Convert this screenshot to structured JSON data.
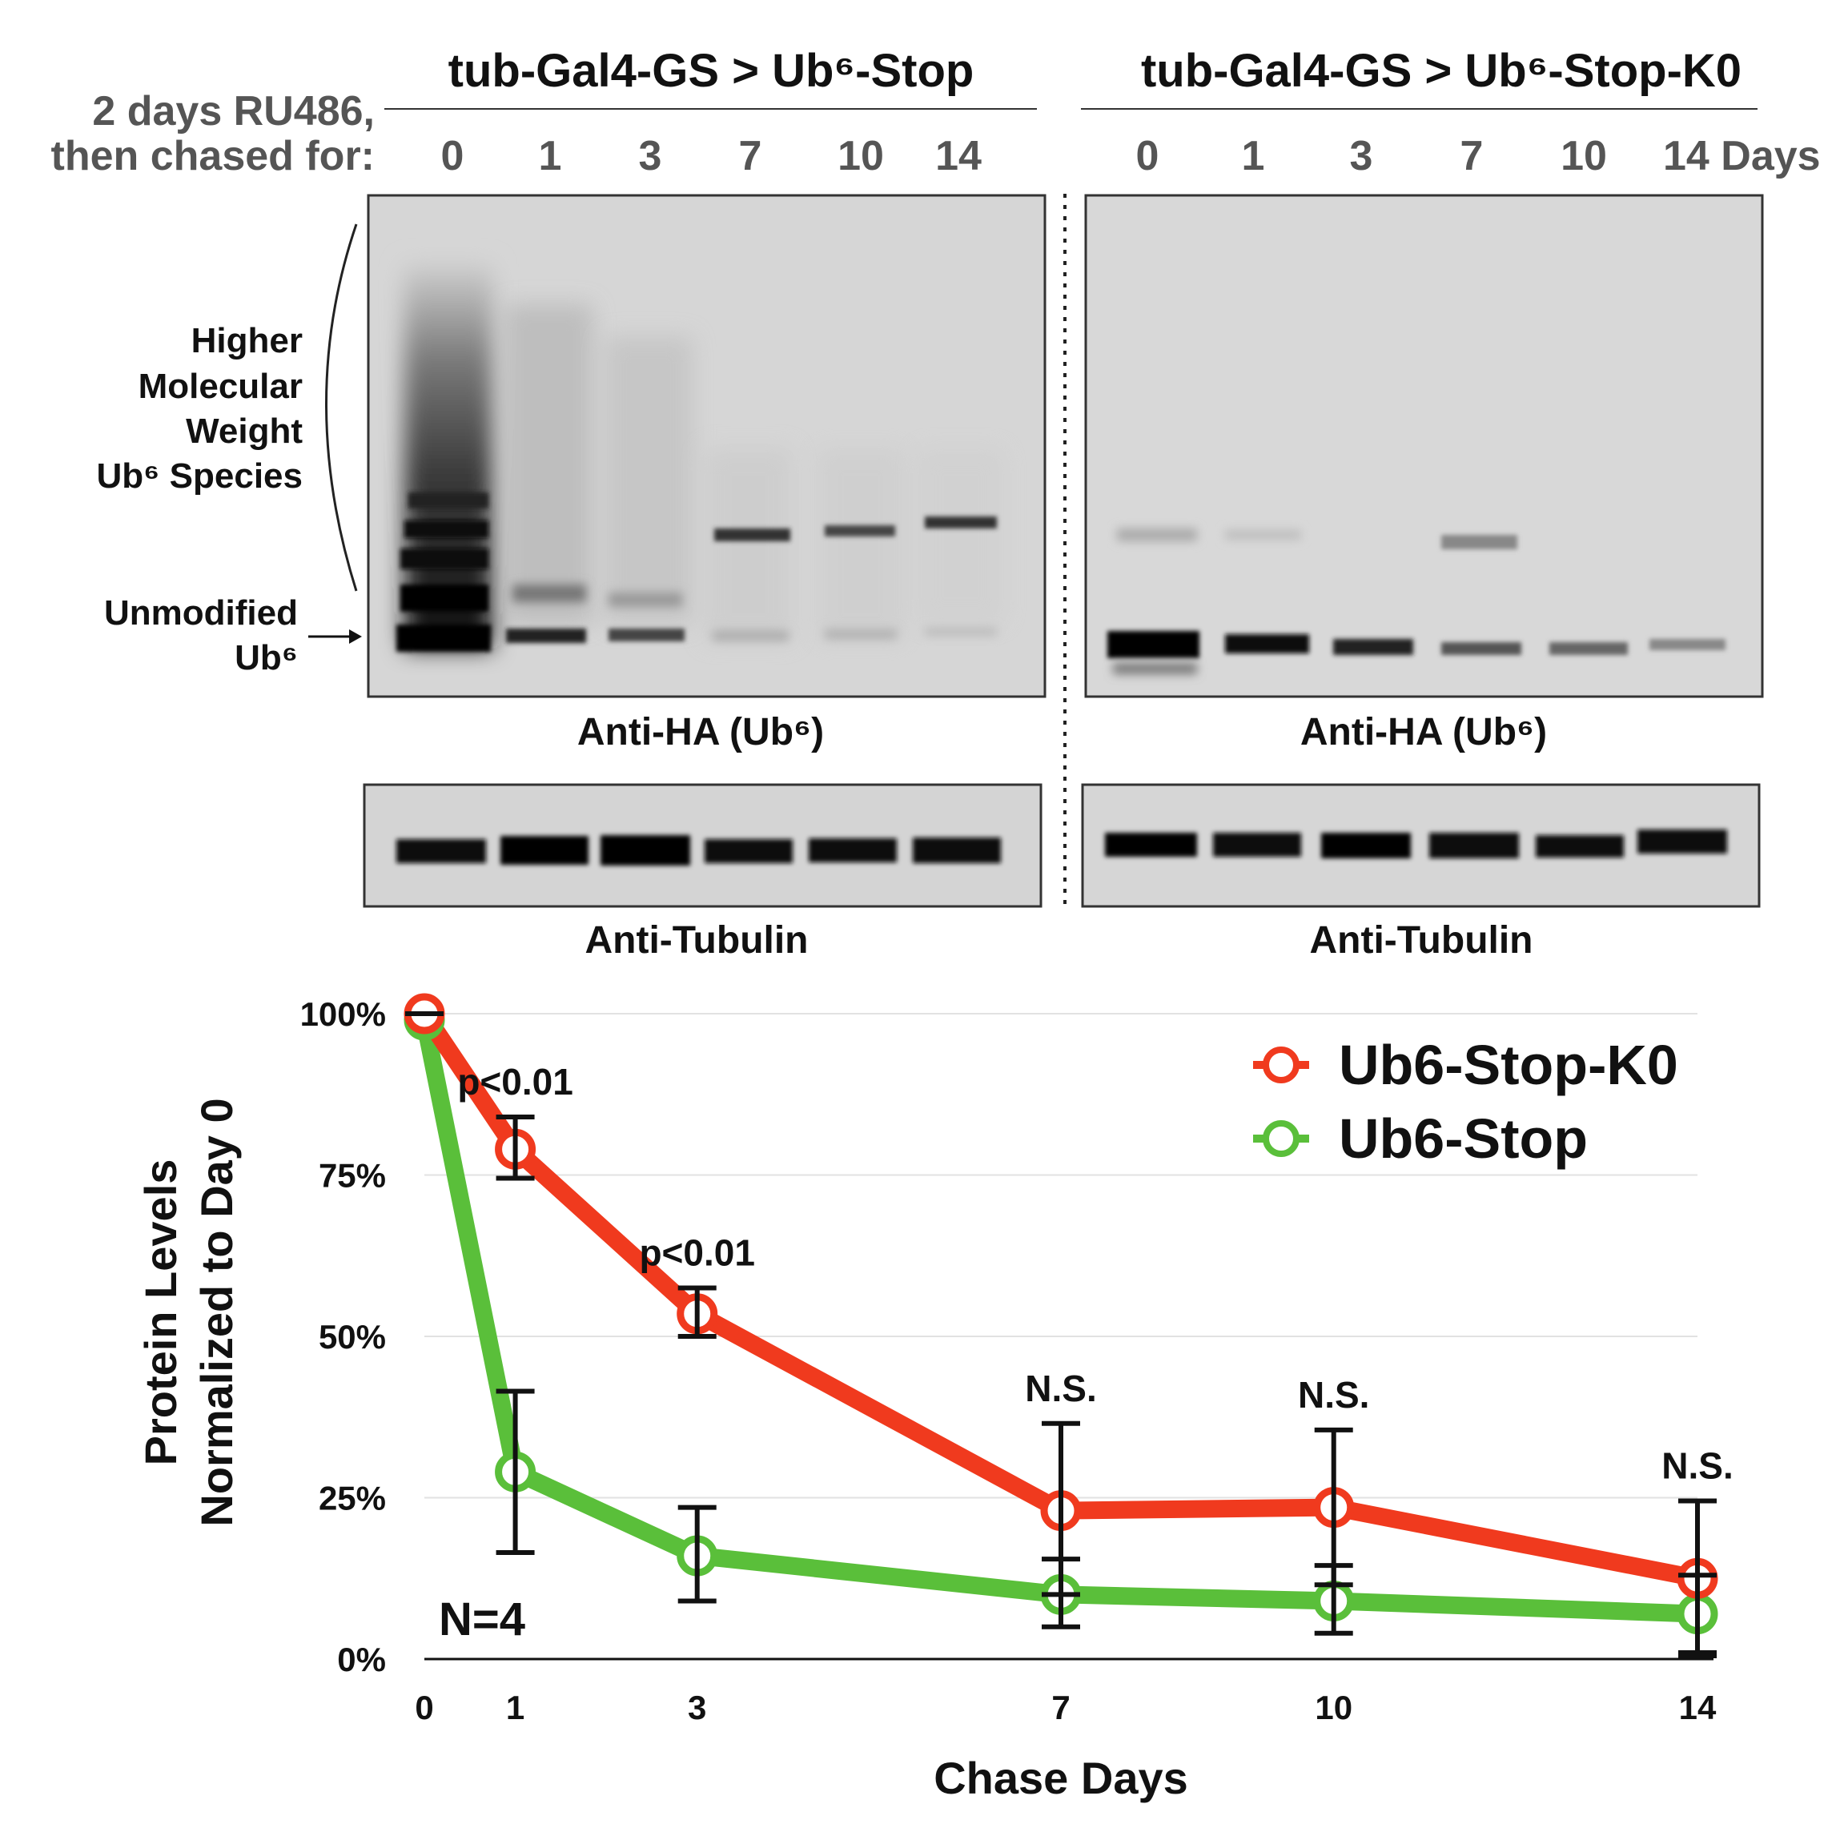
{
  "blot": {
    "group_left_title": "tub-Gal4-GS > Ub⁶-Stop",
    "group_right_title": "tub-Gal4-GS > Ub⁶-Stop-K0",
    "treatment_line1": "2 days RU486,",
    "treatment_line2": "then chased for:",
    "lanes_left": [
      "0",
      "1",
      "3",
      "7",
      "10",
      "14"
    ],
    "lanes_right": [
      "0",
      "1",
      "3",
      "7",
      "10",
      "14 Days"
    ],
    "label_hmw": [
      "Higher",
      "Molecular",
      "Weight",
      "Ub⁶ Species"
    ],
    "label_unmod": [
      "Unmodified",
      "Ub⁶"
    ],
    "caption_ha_left": "Anti-HA (Ub⁶)",
    "caption_ha_right": "Anti-HA (Ub⁶)",
    "caption_tub_left": "Anti-Tubulin",
    "caption_tub_right": "Anti-Tubulin"
  },
  "chart_data": {
    "type": "line",
    "x": [
      0,
      1,
      3,
      7,
      10,
      14
    ],
    "categories": [
      "0",
      "1",
      "3",
      "7",
      "10",
      "14"
    ],
    "ylim": [
      0,
      100
    ],
    "yticks": [
      "0%",
      "25%",
      "50%",
      "75%",
      "100%"
    ],
    "ytick_values": [
      0,
      25,
      50,
      75,
      100
    ],
    "xlabel": "Chase Days",
    "ylabel_line1": "Protein Levels",
    "ylabel_line2": "Normalized to Day 0",
    "legend_position": "top-right",
    "grid": true,
    "series": [
      {
        "name": "Ub6-Stop-K0",
        "color": "#f03a1e",
        "values": [
          100,
          79,
          53.5,
          23,
          23.5,
          12.5
        ],
        "err_low": [
          0,
          4.5,
          3.5,
          13,
          12,
          12
        ],
        "err_high": [
          0,
          5,
          4,
          13.5,
          12,
          12
        ]
      },
      {
        "name": "Ub6-Stop",
        "color": "#5abf3a",
        "values": [
          99,
          29,
          16,
          10,
          9,
          7
        ],
        "err_low": [
          0,
          12.5,
          7,
          5,
          5,
          6
        ],
        "err_high": [
          0,
          12.5,
          7.5,
          5.5,
          5.5,
          6
        ]
      }
    ],
    "annotations": [
      "p<0.01",
      "p<0.01",
      "N.S.",
      "N.S.",
      "N.S."
    ],
    "annotation_x": [
      1,
      3,
      7,
      10,
      14
    ],
    "n_label": "N=4"
  }
}
